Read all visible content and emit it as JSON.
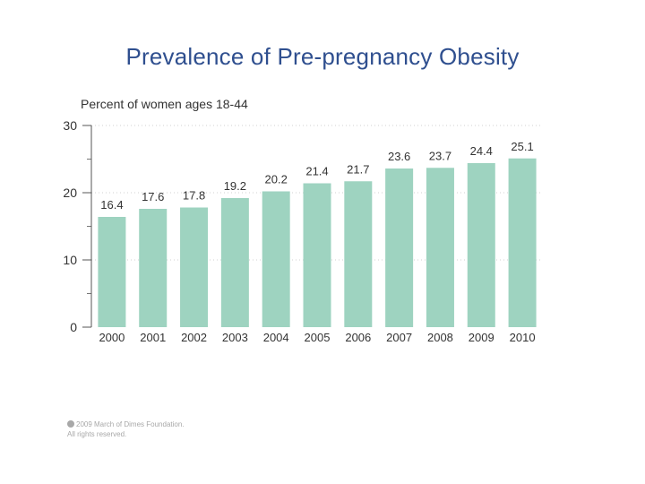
{
  "slide": {
    "title": "Prevalence of Pre-pregnancy Obesity"
  },
  "chart_data": {
    "type": "bar",
    "title": "",
    "ylabel": "Percent of women ages 18-44",
    "xlabel": "",
    "categories": [
      "2000",
      "2001",
      "2002",
      "2003",
      "2004",
      "2005",
      "2006",
      "2007",
      "2008",
      "2009",
      "2010"
    ],
    "values": [
      16.4,
      17.6,
      17.8,
      19.2,
      20.2,
      21.4,
      21.7,
      23.6,
      23.7,
      24.4,
      25.1
    ],
    "ylim": [
      0,
      30
    ],
    "yticks": [
      0,
      10,
      20,
      30
    ],
    "grid": true,
    "bar_color": "#9ed3c0",
    "label_color": "#333333"
  },
  "footer": {
    "line1": "2009 March of Dimes Foundation.",
    "line2": "All rights reserved."
  }
}
